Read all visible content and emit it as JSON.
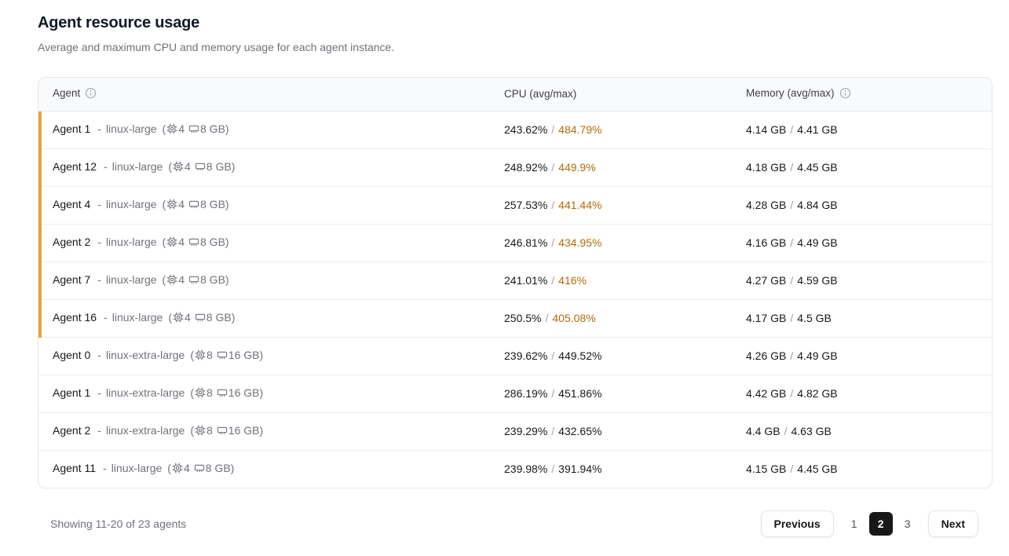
{
  "page": {
    "title": "Agent resource usage",
    "subtitle": "Average and maximum CPU and memory usage for each agent instance."
  },
  "colors": {
    "highlight_bar": "#E8A33D",
    "warning_text": "#B26B09",
    "active_page_bg": "#18181B"
  },
  "table": {
    "columns": {
      "agent": "Agent",
      "cpu": "CPU (avg/max)",
      "memory": "Memory (avg/max)"
    },
    "format": {
      "dash": "-",
      "open_paren": "(",
      "close_paren": ")",
      "separator": "/"
    },
    "rows": [
      {
        "name": "Agent 1",
        "instance_type": "linux-large",
        "cpus": "4",
        "memory_size": "8 GB",
        "cpu_avg": "243.62%",
        "cpu_max": "484.79%",
        "mem_avg": "4.14 GB",
        "mem_max": "4.41 GB",
        "high_usage": true
      },
      {
        "name": "Agent 12",
        "instance_type": "linux-large",
        "cpus": "4",
        "memory_size": "8 GB",
        "cpu_avg": "248.92%",
        "cpu_max": "449.9%",
        "mem_avg": "4.18 GB",
        "mem_max": "4.45 GB",
        "high_usage": true
      },
      {
        "name": "Agent 4",
        "instance_type": "linux-large",
        "cpus": "4",
        "memory_size": "8 GB",
        "cpu_avg": "257.53%",
        "cpu_max": "441.44%",
        "mem_avg": "4.28 GB",
        "mem_max": "4.84 GB",
        "high_usage": true
      },
      {
        "name": "Agent 2",
        "instance_type": "linux-large",
        "cpus": "4",
        "memory_size": "8 GB",
        "cpu_avg": "246.81%",
        "cpu_max": "434.95%",
        "mem_avg": "4.16 GB",
        "mem_max": "4.49 GB",
        "high_usage": true
      },
      {
        "name": "Agent 7",
        "instance_type": "linux-large",
        "cpus": "4",
        "memory_size": "8 GB",
        "cpu_avg": "241.01%",
        "cpu_max": "416%",
        "mem_avg": "4.27 GB",
        "mem_max": "4.59 GB",
        "high_usage": true
      },
      {
        "name": "Agent 16",
        "instance_type": "linux-large",
        "cpus": "4",
        "memory_size": "8 GB",
        "cpu_avg": "250.5%",
        "cpu_max": "405.08%",
        "mem_avg": "4.17 GB",
        "mem_max": "4.5 GB",
        "high_usage": true
      },
      {
        "name": "Agent 0",
        "instance_type": "linux-extra-large",
        "cpus": "8",
        "memory_size": "16 GB",
        "cpu_avg": "239.62%",
        "cpu_max": "449.52%",
        "mem_avg": "4.26 GB",
        "mem_max": "4.49 GB",
        "high_usage": false
      },
      {
        "name": "Agent 1",
        "instance_type": "linux-extra-large",
        "cpus": "8",
        "memory_size": "16 GB",
        "cpu_avg": "286.19%",
        "cpu_max": "451.86%",
        "mem_avg": "4.42 GB",
        "mem_max": "4.82 GB",
        "high_usage": false
      },
      {
        "name": "Agent 2",
        "instance_type": "linux-extra-large",
        "cpus": "8",
        "memory_size": "16 GB",
        "cpu_avg": "239.29%",
        "cpu_max": "432.65%",
        "mem_avg": "4.4 GB",
        "mem_max": "4.63 GB",
        "high_usage": false
      },
      {
        "name": "Agent 11",
        "instance_type": "linux-large",
        "cpus": "4",
        "memory_size": "8 GB",
        "cpu_avg": "239.98%",
        "cpu_max": "391.94%",
        "mem_avg": "4.15 GB",
        "mem_max": "4.45 GB",
        "high_usage": false
      }
    ]
  },
  "footer": {
    "summary": "Showing 11-20 of 23 agents",
    "pagination": {
      "previous": "Previous",
      "pages": [
        "1",
        "2",
        "3"
      ],
      "active_page": "2",
      "next": "Next"
    }
  }
}
